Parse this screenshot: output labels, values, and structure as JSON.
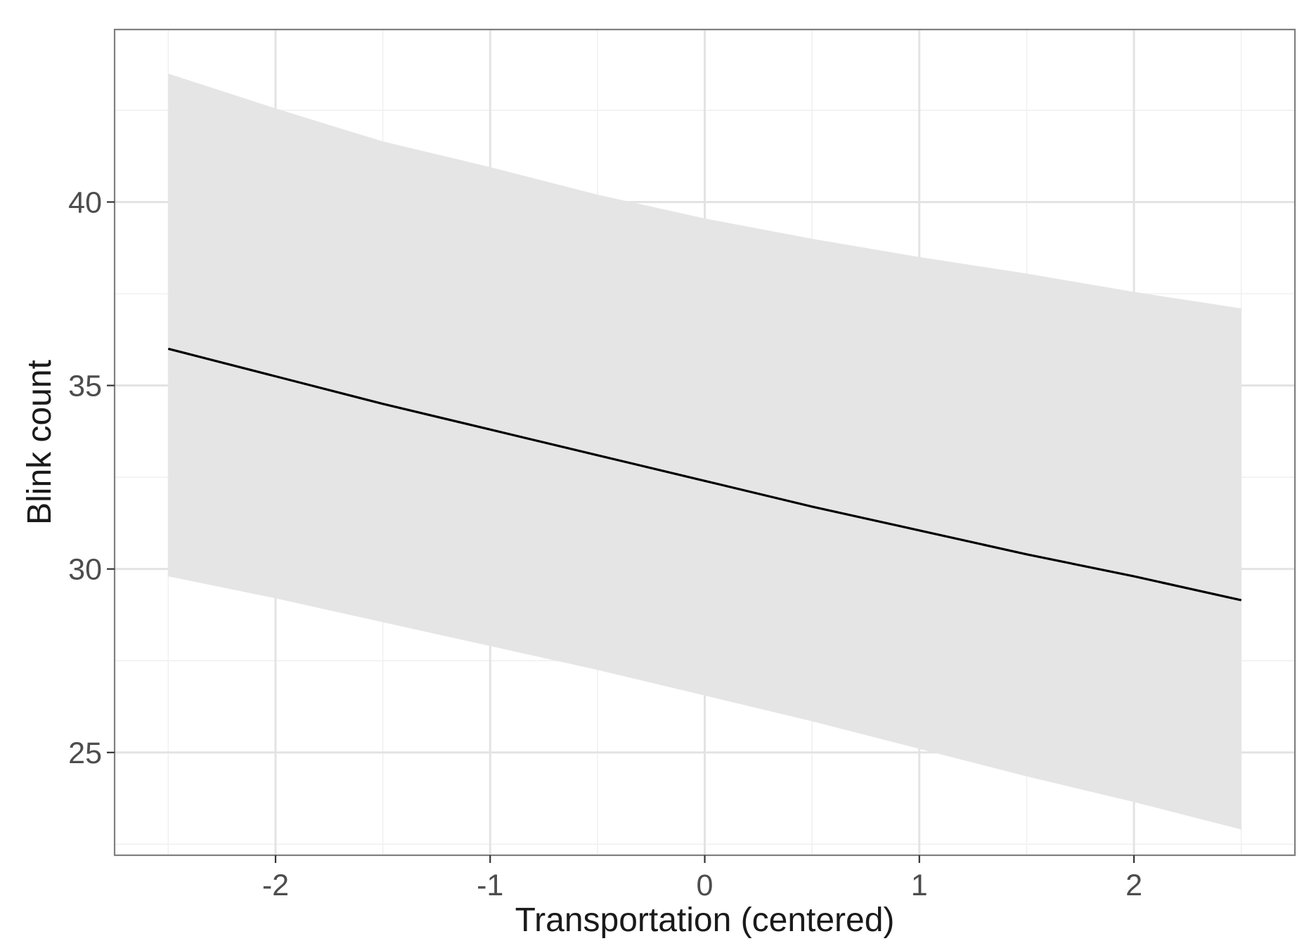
{
  "chart_data": {
    "type": "line",
    "title": "",
    "xlabel": "Transportation (centered)",
    "ylabel": "Blink count",
    "xlim": [
      -2.75,
      2.75
    ],
    "ylim": [
      22.2,
      44.7
    ],
    "x_ticks": [
      -2,
      -1,
      0,
      1,
      2
    ],
    "x_tick_labels": [
      "-2",
      "-1",
      "0",
      "1",
      "2"
    ],
    "y_ticks": [
      25,
      30,
      35,
      40
    ],
    "y_tick_labels": [
      "25",
      "30",
      "35",
      "40"
    ],
    "x_minor_ticks": [
      -2.5,
      -1.5,
      -0.5,
      0.5,
      1.5,
      2.5
    ],
    "y_minor_ticks": [
      22.5,
      27.5,
      32.5,
      37.5,
      42.5
    ],
    "grid": true,
    "legend": "none",
    "colors": {
      "line": "#000000",
      "ribbon": "#e5e5e5",
      "panel_border": "#7f7f7f"
    },
    "series": [
      {
        "x": [
          -2.5,
          -2.0,
          -1.5,
          -1.0,
          -0.5,
          0.0,
          0.5,
          1.0,
          1.5,
          2.0,
          2.5
        ],
        "y": [
          36.0,
          35.25,
          34.5,
          33.8,
          33.1,
          32.4,
          31.7,
          31.05,
          30.4,
          29.8,
          29.15
        ],
        "lower": [
          29.8,
          29.2,
          28.55,
          27.9,
          27.25,
          26.55,
          25.85,
          25.1,
          24.35,
          23.65,
          22.9
        ],
        "upper": [
          43.5,
          42.55,
          41.65,
          40.95,
          40.2,
          39.55,
          39.0,
          38.5,
          38.05,
          37.55,
          37.1
        ]
      }
    ]
  }
}
